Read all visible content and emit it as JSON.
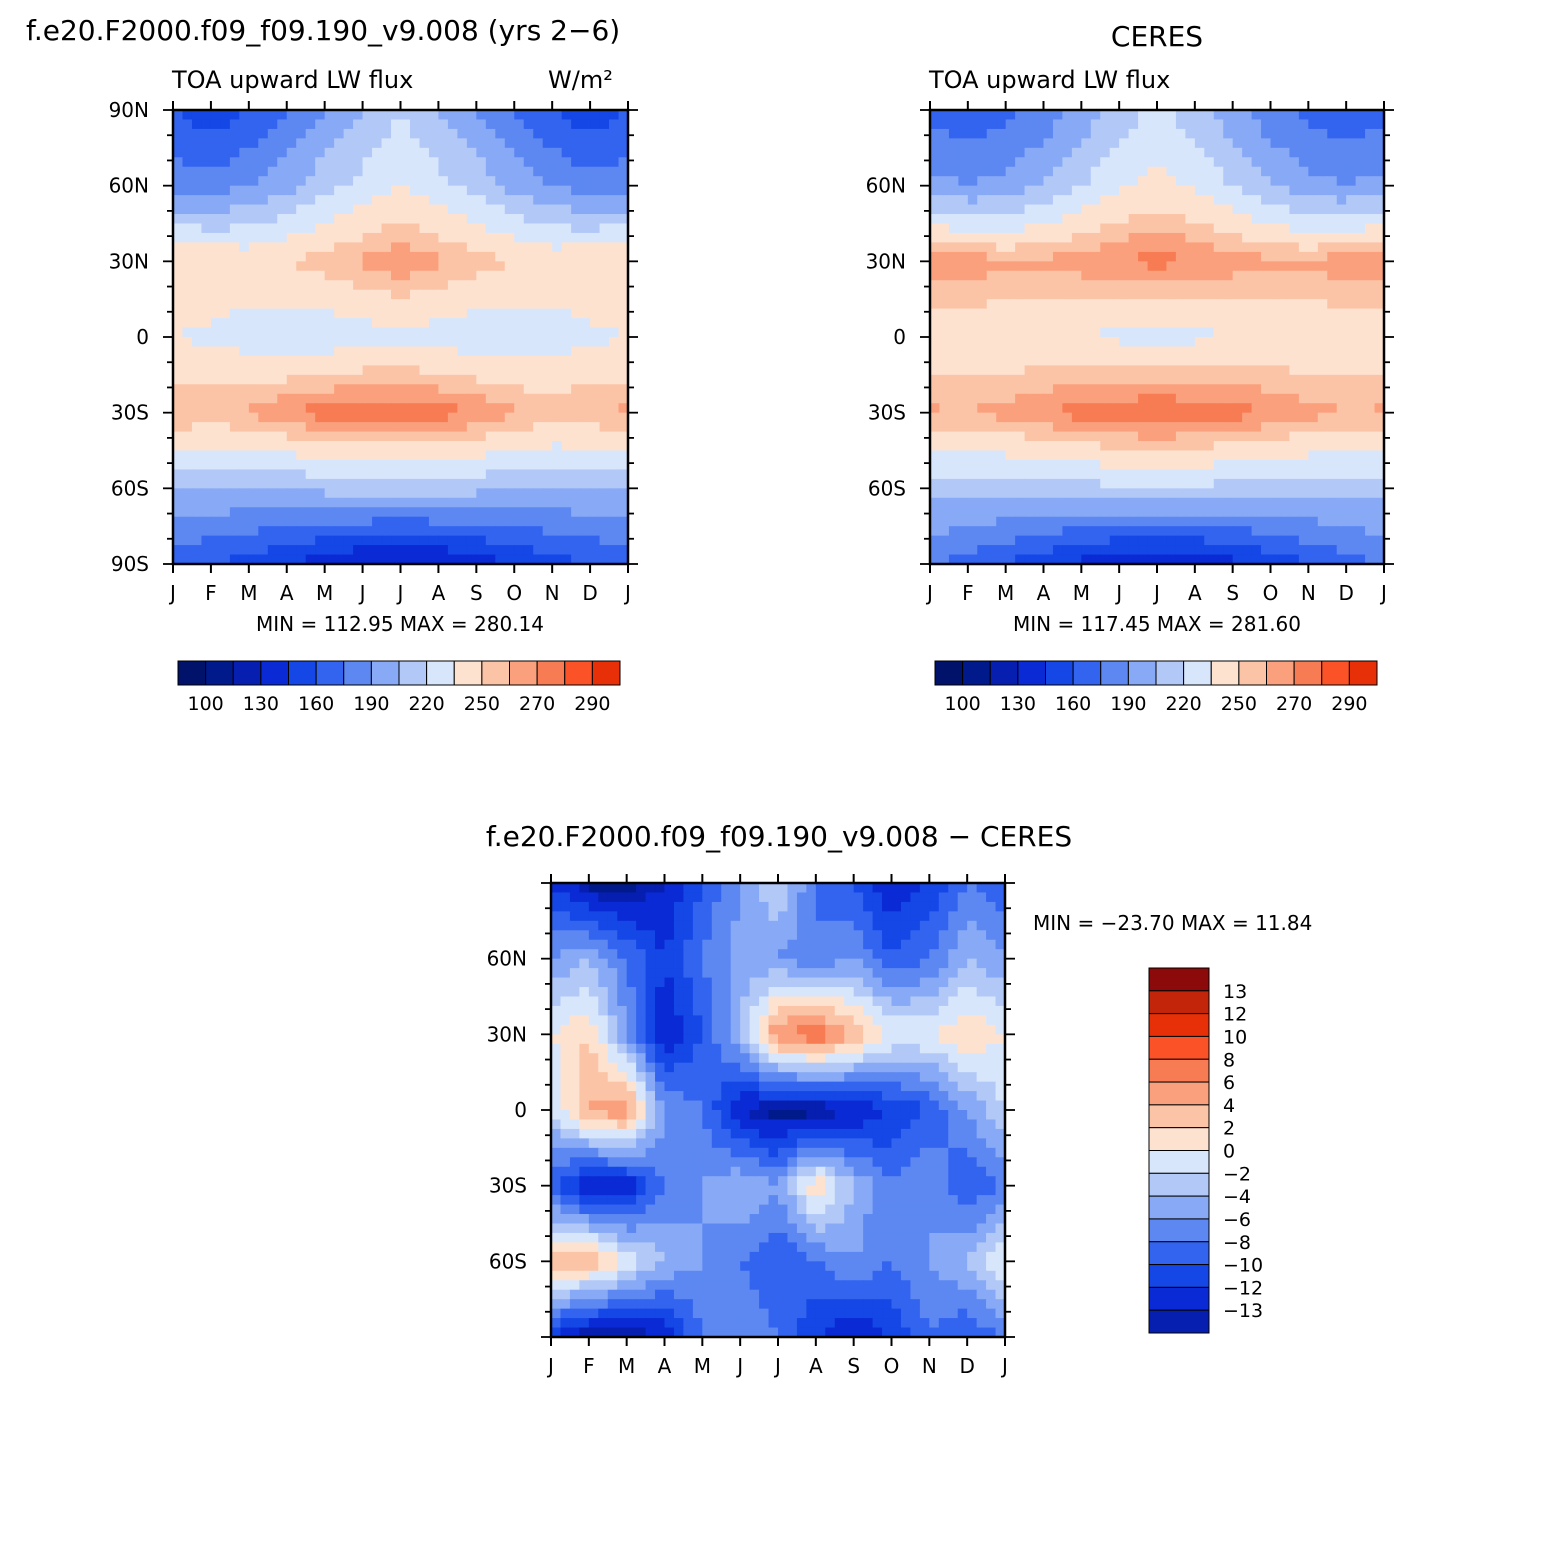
{
  "chart_data": [
    {
      "type": "heatmap",
      "title": "f.e20.F2000.f09_f09.190_v9.008 (yrs 2−6)",
      "subtitle_left": "TOA upward LW flux",
      "units": "W/m²",
      "x_ticks": [
        "J",
        "F",
        "M",
        "A",
        "M",
        "J",
        "J",
        "A",
        "S",
        "O",
        "N",
        "D",
        "J"
      ],
      "y_ticks": [
        "90N",
        "60N",
        "30N",
        "0",
        "30S",
        "60S",
        "90S"
      ],
      "stats": "MIN = 112.95 MAX = 280.14",
      "colorbar": {
        "orientation": "horizontal",
        "labels": [
          "100",
          "130",
          "160",
          "190",
          "220",
          "250",
          "270",
          "290"
        ]
      },
      "contour_levels": [
        100,
        115,
        130,
        145,
        160,
        175,
        190,
        205,
        220,
        235,
        250,
        260,
        270,
        280,
        290
      ],
      "x": [
        1,
        2,
        3,
        4,
        5,
        6,
        7,
        8,
        9,
        10,
        11,
        12,
        13
      ],
      "y": [
        90,
        60,
        30,
        0,
        -30,
        -60,
        -90
      ],
      "z": [
        [
          160,
          150,
          160,
          175,
          190,
          205,
          220,
          205,
          190,
          175,
          160,
          150,
          160
        ],
        [
          185,
          180,
          190,
          200,
          215,
          225,
          235,
          225,
          215,
          200,
          190,
          180,
          185
        ],
        [
          250,
          250,
          245,
          250,
          255,
          262,
          268,
          262,
          255,
          250,
          245,
          250,
          250
        ],
        [
          235,
          232,
          228,
          225,
          225,
          228,
          230,
          228,
          225,
          225,
          228,
          232,
          235
        ],
        [
          262,
          258,
          262,
          270,
          275,
          278,
          278,
          275,
          270,
          262,
          258,
          260,
          262
        ],
        [
          205,
          205,
          205,
          205,
          210,
          212,
          212,
          212,
          210,
          205,
          205,
          205,
          205
        ],
        [
          165,
          160,
          155,
          145,
          135,
          128,
          126,
          128,
          135,
          145,
          155,
          160,
          165
        ]
      ]
    },
    {
      "type": "heatmap",
      "title": "CERES",
      "subtitle_left": "TOA upward LW flux",
      "x_ticks": [
        "J",
        "F",
        "M",
        "A",
        "M",
        "J",
        "J",
        "A",
        "S",
        "O",
        "N",
        "D",
        "J"
      ],
      "y_ticks": [
        "60N",
        "30N",
        "0",
        "30S",
        "60S"
      ],
      "stats": "MIN = 117.45 MAX = 281.60",
      "colorbar": {
        "orientation": "horizontal",
        "labels": [
          "100",
          "130",
          "160",
          "190",
          "220",
          "250",
          "270",
          "290"
        ]
      },
      "contour_levels": [
        100,
        115,
        130,
        145,
        160,
        175,
        190,
        205,
        220,
        235,
        250,
        260,
        270,
        280,
        290
      ],
      "x": [
        1,
        2,
        3,
        4,
        5,
        6,
        7,
        8,
        9,
        10,
        11,
        12,
        13
      ],
      "y": [
        90,
        60,
        30,
        0,
        -30,
        -60,
        -90
      ],
      "z": [
        [
          170,
          165,
          170,
          180,
          195,
          210,
          225,
          210,
          195,
          180,
          170,
          165,
          170
        ],
        [
          195,
          190,
          195,
          205,
          220,
          232,
          240,
          232,
          220,
          205,
          195,
          190,
          195
        ],
        [
          268,
          268,
          262,
          262,
          266,
          270,
          274,
          270,
          266,
          262,
          262,
          268,
          268
        ],
        [
          240,
          240,
          238,
          236,
          234,
          232,
          230,
          232,
          234,
          236,
          238,
          240,
          240
        ],
        [
          262,
          260,
          264,
          270,
          275,
          278,
          280,
          278,
          275,
          270,
          264,
          260,
          262
        ],
        [
          212,
          212,
          212,
          212,
          215,
          218,
          218,
          218,
          215,
          212,
          212,
          212,
          212
        ],
        [
          175,
          170,
          160,
          150,
          140,
          132,
          130,
          132,
          140,
          150,
          160,
          170,
          175
        ]
      ]
    },
    {
      "type": "heatmap",
      "title": "f.e20.F2000.f09_f09.190_v9.008 − CERES",
      "x_ticks": [
        "J",
        "F",
        "M",
        "A",
        "M",
        "J",
        "J",
        "A",
        "S",
        "O",
        "N",
        "D",
        "J"
      ],
      "y_ticks": [
        "60N",
        "30N",
        "0",
        "30S",
        "60S"
      ],
      "stats": "MIN = −23.70 MAX =   11.84",
      "colorbar": {
        "orientation": "vertical",
        "labels": [
          "13",
          "12",
          "10",
          "8",
          "6",
          "4",
          "2",
          "0",
          "−2",
          "−4",
          "−6",
          "−8",
          "−10",
          "−12",
          "−13"
        ]
      },
      "contour_levels": [
        -14,
        -13,
        -12,
        -10,
        -8,
        -6,
        -4,
        -2,
        0,
        2,
        4,
        6,
        8,
        10,
        12,
        13,
        14
      ],
      "x": [
        1,
        2,
        3,
        4,
        5,
        6,
        7,
        8,
        9,
        10,
        11,
        12,
        13
      ],
      "y": [
        90,
        60,
        30,
        0,
        -30,
        -60,
        -90
      ],
      "z": [
        [
          -10,
          -14,
          -14,
          -12,
          -8,
          -4,
          0,
          -6,
          -8,
          -12,
          -10,
          -6,
          -8
        ],
        [
          -4,
          -2,
          -6,
          -10,
          -6,
          -3,
          -4,
          -6,
          -4,
          -8,
          -6,
          -2,
          -4
        ],
        [
          2,
          4,
          -4,
          -12,
          -8,
          -2,
          8,
          10,
          6,
          2,
          2,
          4,
          2
        ],
        [
          0,
          6,
          8,
          -4,
          -6,
          -12,
          -14,
          -14,
          -12,
          -10,
          -8,
          -4,
          0
        ],
        [
          -8,
          -12,
          -12,
          -6,
          -4,
          -2,
          -4,
          4,
          -2,
          -6,
          -4,
          -8,
          -6
        ],
        [
          6,
          6,
          2,
          -2,
          -4,
          -6,
          -8,
          -6,
          -4,
          -6,
          -4,
          -2,
          2
        ],
        [
          -10,
          -14,
          -14,
          -12,
          -6,
          -4,
          -6,
          -10,
          -12,
          -10,
          -6,
          -8,
          -6
        ]
      ]
    }
  ],
  "colors": {
    "positive": [
      "#fde2d0",
      "#fcc4a6",
      "#fba07d",
      "#f77c54",
      "#fc5227",
      "#e83008",
      "#c3250a",
      "#8c0a0a"
    ],
    "negative": [
      "#d8e6fc",
      "#b2c9f8",
      "#88aaf6",
      "#5d88f2",
      "#3364f0",
      "#1547e6",
      "#0a2ad6",
      "#061fb0",
      "#001a8c",
      "#00126a"
    ]
  }
}
